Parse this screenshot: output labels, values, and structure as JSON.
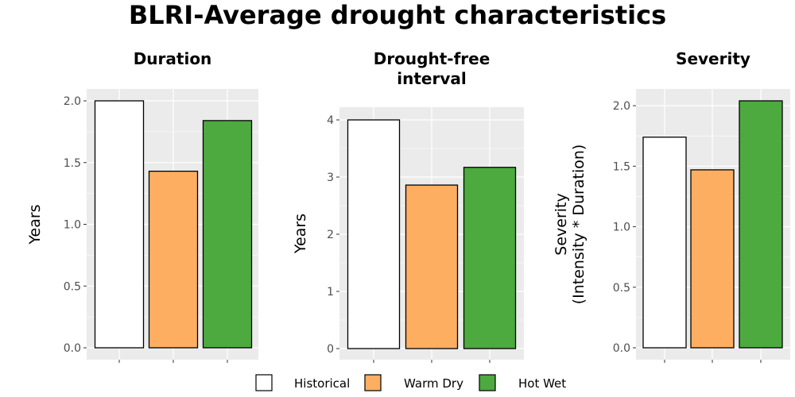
{
  "title": "BLRI-Average drought characteristics",
  "chart_data": [
    {
      "type": "bar",
      "title": "Duration",
      "categories": [
        "Historical",
        "Warm Dry",
        "Hot Wet"
      ],
      "values": [
        2.0,
        1.43,
        1.84
      ],
      "ylabel": [
        "Years"
      ],
      "ylim": [
        0,
        2.0
      ],
      "yticks": [
        0,
        0.5,
        1.0,
        1.5,
        2.0
      ],
      "ytick_labels": [
        "0.0",
        "0.5",
        "1.0",
        "1.5",
        "2.0"
      ],
      "grid": true
    },
    {
      "type": "bar",
      "title": [
        "Drought-free",
        "interval"
      ],
      "categories": [
        "Historical",
        "Warm Dry",
        "Hot Wet"
      ],
      "values": [
        4.0,
        2.86,
        3.17
      ],
      "ylabel": [
        "Years"
      ],
      "ylim": [
        0,
        4
      ],
      "yticks": [
        0,
        1,
        2,
        3,
        4
      ],
      "ytick_labels": [
        "0",
        "1",
        "2",
        "3",
        "4"
      ],
      "grid": true
    },
    {
      "type": "bar",
      "title": "Severity",
      "categories": [
        "Historical",
        "Warm Dry",
        "Hot Wet"
      ],
      "values": [
        1.74,
        1.47,
        2.04
      ],
      "ylabel": [
        "Severity",
        "(Intensity * Duration)"
      ],
      "ylim": [
        0,
        2.04
      ],
      "yticks": [
        0,
        0.5,
        1.0,
        1.5,
        2.0
      ],
      "ytick_labels": [
        "0.0",
        "0.5",
        "1.0",
        "1.5",
        "2.0"
      ],
      "grid": true
    }
  ],
  "legend": {
    "position": "bottom",
    "items": [
      {
        "label": "Historical",
        "color": "#ffffff"
      },
      {
        "label": "Warm Dry",
        "color": "#fdae61"
      },
      {
        "label": "Hot Wet",
        "color": "#4daa3f"
      }
    ]
  },
  "colors": {
    "panel_background": "#ebebeb",
    "gridline": "#ffffff",
    "bar_outline": "#000000"
  }
}
